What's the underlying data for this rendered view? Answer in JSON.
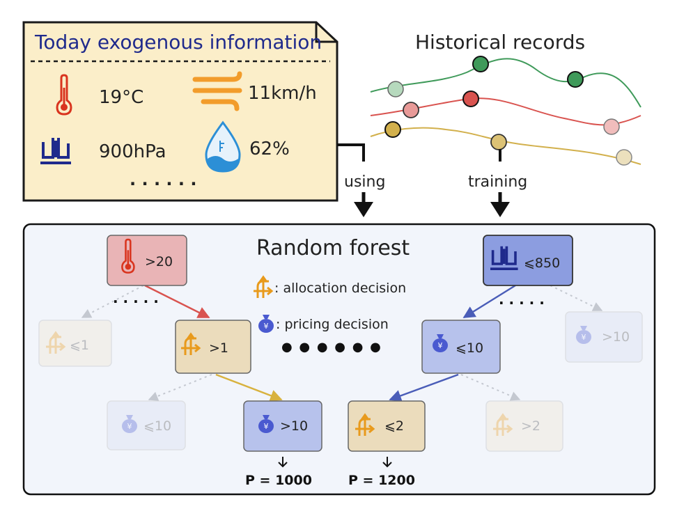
{
  "exogenous": {
    "title": "Today exogenous information",
    "temperature": "19°C",
    "wind": "11km/h",
    "pressure": "900hPa",
    "humidity": "62%",
    "more": "· · · · · ·"
  },
  "history": {
    "title": "Historical records"
  },
  "flow": {
    "using": "using",
    "training": "training"
  },
  "forest": {
    "title": "Random forest",
    "legend_allocation": ": allocation decision",
    "legend_pricing": ": pricing decision",
    "ellipsis_center": "● ● ● ● ● ●",
    "ellipsis_left": "· · · · ·",
    "ellipsis_right": "· · · · ·",
    "tree_left": {
      "root": ">20",
      "faded_left": "⩽1",
      "mid": ">1",
      "faded_mid_left": "⩽10",
      "leaf": ">10",
      "leaf_result": "P = 1000"
    },
    "tree_right": {
      "root": "⩽850",
      "faded_right": ">10",
      "mid": "⩽10",
      "leaf": "⩽2",
      "faded_leaf": ">2",
      "leaf_result": "P = 1200"
    }
  },
  "colors": {
    "note_bg": "#fbeec9",
    "title_blue": "#1f2a8c",
    "temp_red": "#d9341e",
    "wind_orange": "#f29c2b",
    "water_blue": "#2c8fd6",
    "pressure_navy": "#1f2a8c",
    "alloc_orange": "#e89a1c",
    "price_blue": "#4a5ad0",
    "green_line": "#3f9a5a",
    "red_line": "#d9534f",
    "gold_line": "#d2b04c",
    "forest_bg": "#f2f5fb"
  }
}
